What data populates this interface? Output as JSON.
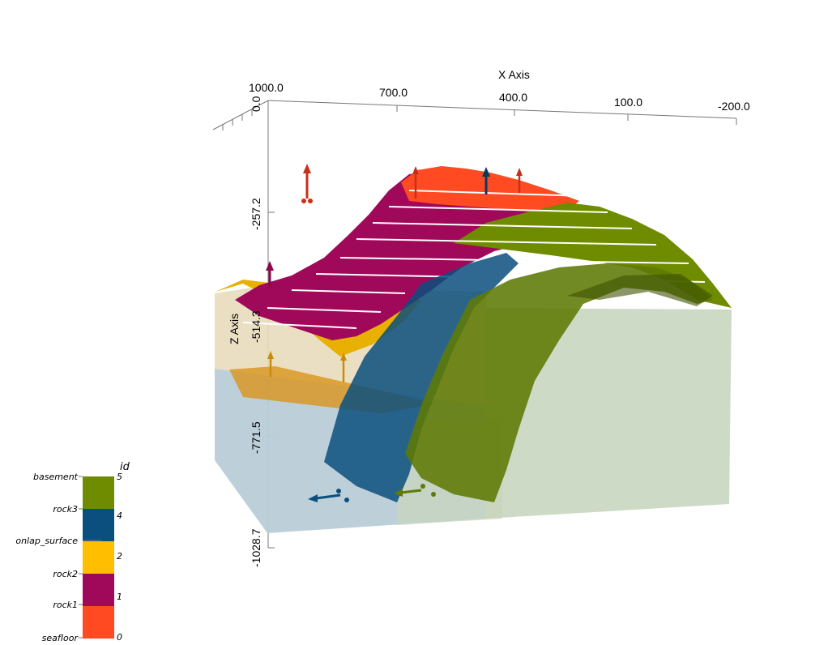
{
  "axes": {
    "x_title": "X Axis",
    "z_title": "Z Axis",
    "x_ticks": [
      "1000.0",
      "700.0",
      "400.0",
      "100.0",
      "-200.0"
    ],
    "z_ticks": [
      "0.0",
      "-257.2",
      "-514.3",
      "-771.5",
      "-1028.7"
    ]
  },
  "legend": {
    "title": "id",
    "items": [
      {
        "label": "basement",
        "id": "5",
        "color": "#6f8c00"
      },
      {
        "label": "rock3",
        "id": "4",
        "color": "#0b4f7e"
      },
      {
        "label": "onlap_surface",
        "id": "2",
        "color": "#ffbf00"
      },
      {
        "label": "rock2",
        "id": "",
        "color": "#a0085a"
      },
      {
        "label": "rock1",
        "id": "1",
        "color": "#a0085a"
      },
      {
        "label": "seafloor",
        "id": "0",
        "color": "#ff4a22"
      }
    ]
  },
  "colors": {
    "seafloor": "#ff4a22",
    "rock1": "#a0085a",
    "onlap_surface": "#ffbf00",
    "rock3": "#0b4f7e",
    "basement": "#6f8c00",
    "box_upper": "#e9dcbc",
    "box_lower": "#b9cdd8",
    "box_right": "#c8d6c0"
  }
}
